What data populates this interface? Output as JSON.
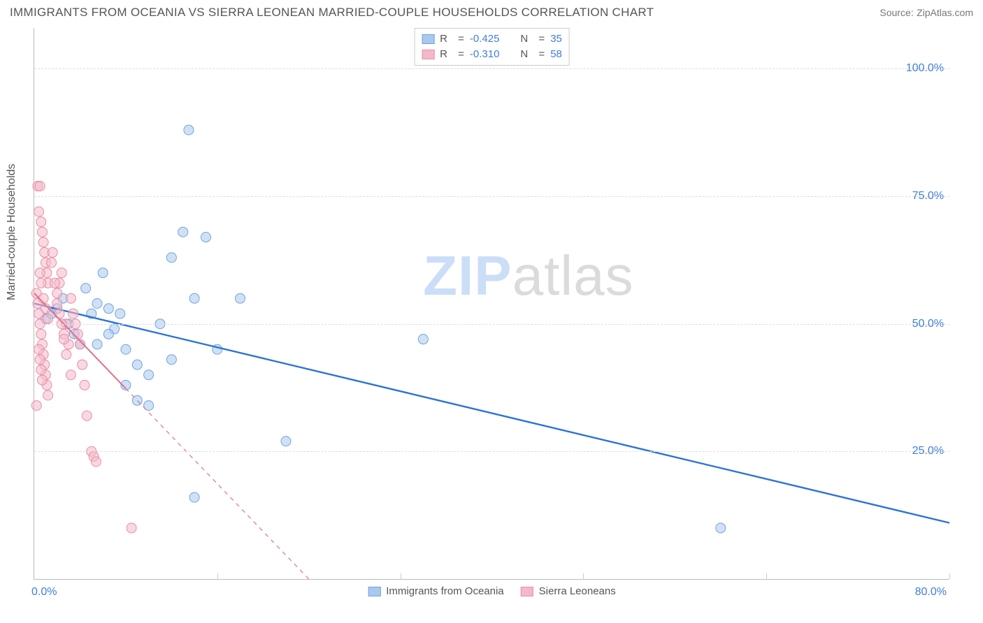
{
  "title": "IMMIGRANTS FROM OCEANIA VS SIERRA LEONEAN MARRIED-COUPLE HOUSEHOLDS CORRELATION CHART",
  "source_label": "Source:",
  "source_value": "ZipAtlas.com",
  "ylabel": "Married-couple Households",
  "watermark": {
    "z": "ZIP",
    "rest": "atlas"
  },
  "chart": {
    "type": "scatter",
    "background": "#ffffff",
    "grid_color": "#dddddd",
    "axis_color": "#bbbbbb",
    "tick_color": "#3f7fd6",
    "xlim": [
      0,
      80
    ],
    "ylim": [
      0,
      108
    ],
    "y_ticks": [
      25,
      50,
      75,
      100
    ],
    "y_tick_labels": [
      "25.0%",
      "50.0%",
      "75.0%",
      "100.0%"
    ],
    "x_tick_min": "0.0%",
    "x_tick_max": "80.0%",
    "x_gridlines": [
      16,
      32,
      48,
      64,
      80
    ],
    "marker_radius": 7,
    "marker_opacity": 0.55,
    "series": [
      {
        "name": "Immigrants from Oceania",
        "color_fill": "#a9c8ee",
        "color_stroke": "#6fa4de",
        "R": "-0.425",
        "N": "35",
        "trend": {
          "x1": 0,
          "y1": 54,
          "x2": 80,
          "y2": 11,
          "dash": false,
          "color": "#2b74d4",
          "width": 2.4,
          "extrapolate_dash_from_x": null
        },
        "points": [
          [
            1,
            51
          ],
          [
            1.5,
            52
          ],
          [
            2,
            53
          ],
          [
            2.5,
            55
          ],
          [
            3,
            50
          ],
          [
            3.5,
            48
          ],
          [
            4,
            46
          ],
          [
            4.5,
            57
          ],
          [
            5,
            52
          ],
          [
            5.5,
            54
          ],
          [
            6,
            60
          ],
          [
            6.5,
            53
          ],
          [
            7,
            49
          ],
          [
            7.5,
            52
          ],
          [
            8,
            45
          ],
          [
            9,
            42
          ],
          [
            10,
            40
          ],
          [
            11,
            50
          ],
          [
            12,
            63
          ],
          [
            13,
            68
          ],
          [
            13.5,
            88
          ],
          [
            14,
            55
          ],
          [
            15,
            67
          ],
          [
            16,
            45
          ],
          [
            18,
            55
          ],
          [
            22,
            27
          ],
          [
            12,
            43
          ],
          [
            14,
            16
          ],
          [
            34,
            47
          ],
          [
            60,
            10
          ],
          [
            10,
            34
          ],
          [
            9,
            35
          ],
          [
            8,
            38
          ],
          [
            6.5,
            48
          ],
          [
            5.5,
            46
          ]
        ]
      },
      {
        "name": "Sierra Leoneans",
        "color_fill": "#f4b9c9",
        "color_stroke": "#e98ca5",
        "R": "-0.310",
        "N": "58",
        "trend": {
          "x1": 0,
          "y1": 56,
          "x2": 24,
          "y2": 0,
          "dash": false,
          "color": "#e06f8f",
          "width": 2,
          "extrapolate_dash_from_x": 8
        },
        "points": [
          [
            0.3,
            77
          ],
          [
            0.5,
            77
          ],
          [
            0.4,
            72
          ],
          [
            0.6,
            70
          ],
          [
            0.7,
            68
          ],
          [
            0.8,
            66
          ],
          [
            0.9,
            64
          ],
          [
            1.0,
            62
          ],
          [
            1.1,
            60
          ],
          [
            1.2,
            58
          ],
          [
            0.2,
            56
          ],
          [
            0.3,
            54
          ],
          [
            0.4,
            52
          ],
          [
            0.5,
            50
          ],
          [
            0.6,
            48
          ],
          [
            0.7,
            46
          ],
          [
            0.8,
            44
          ],
          [
            0.9,
            42
          ],
          [
            1.0,
            40
          ],
          [
            1.1,
            38
          ],
          [
            1.2,
            36
          ],
          [
            0.2,
            34
          ],
          [
            2.0,
            56
          ],
          [
            2.2,
            58
          ],
          [
            2.4,
            60
          ],
          [
            2.6,
            48
          ],
          [
            2.8,
            50
          ],
          [
            3.0,
            46
          ],
          [
            3.2,
            55
          ],
          [
            3.4,
            52
          ],
          [
            3.6,
            50
          ],
          [
            3.8,
            48
          ],
          [
            4.0,
            46
          ],
          [
            4.2,
            42
          ],
          [
            4.4,
            38
          ],
          [
            4.6,
            32
          ],
          [
            5.0,
            25
          ],
          [
            5.2,
            24
          ],
          [
            5.4,
            23
          ],
          [
            8.5,
            10
          ],
          [
            0.4,
            45
          ],
          [
            0.5,
            43
          ],
          [
            0.6,
            41
          ],
          [
            0.7,
            39
          ],
          [
            1.5,
            62
          ],
          [
            1.6,
            64
          ],
          [
            1.8,
            58
          ],
          [
            2.0,
            54
          ],
          [
            2.2,
            52
          ],
          [
            2.4,
            50
          ],
          [
            2.6,
            47
          ],
          [
            2.8,
            44
          ],
          [
            3.2,
            40
          ],
          [
            0.5,
            60
          ],
          [
            0.6,
            58
          ],
          [
            0.8,
            55
          ],
          [
            1.0,
            53
          ],
          [
            1.2,
            51
          ]
        ]
      }
    ]
  }
}
